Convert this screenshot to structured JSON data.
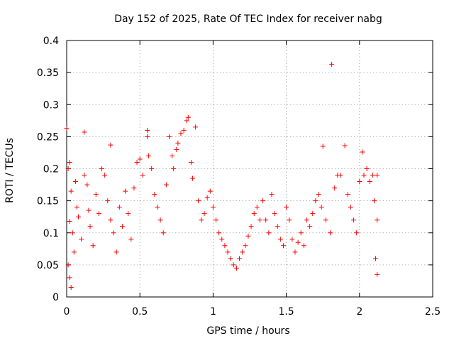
{
  "chart_data": {
    "type": "scatter",
    "title": "Day 152 of 2025, Rate Of TEC Index for receiver nabg",
    "xlabel": "GPS time / hours",
    "ylabel": "ROTI / TECUs",
    "xlim": [
      0,
      2.5
    ],
    "ylim": [
      0,
      0.4
    ],
    "xticks": [
      "0",
      "0.5",
      "1",
      "1.5",
      "2",
      "2.5"
    ],
    "yticks": [
      "0",
      "0.05",
      "0.1",
      "0.15",
      "0.2",
      "0.25",
      "0.3",
      "0.35",
      "0.4"
    ],
    "grid": true,
    "marker": "plus",
    "color": "#ff0000",
    "series": [
      {
        "points": [
          [
            0.0,
            0.263
          ],
          [
            0.01,
            0.2
          ],
          [
            0.02,
            0.21
          ],
          [
            0.03,
            0.165
          ],
          [
            0.02,
            0.118
          ],
          [
            0.04,
            0.1
          ],
          [
            0.05,
            0.07
          ],
          [
            0.01,
            0.05
          ],
          [
            0.02,
            0.03
          ],
          [
            0.03,
            0.015
          ],
          [
            0.06,
            0.18
          ],
          [
            0.07,
            0.14
          ],
          [
            0.08,
            0.125
          ],
          [
            0.1,
            0.09
          ],
          [
            0.12,
            0.257
          ],
          [
            0.12,
            0.19
          ],
          [
            0.14,
            0.175
          ],
          [
            0.15,
            0.135
          ],
          [
            0.16,
            0.11
          ],
          [
            0.18,
            0.08
          ],
          [
            0.2,
            0.16
          ],
          [
            0.22,
            0.13
          ],
          [
            0.24,
            0.2
          ],
          [
            0.26,
            0.19
          ],
          [
            0.28,
            0.15
          ],
          [
            0.3,
            0.237
          ],
          [
            0.3,
            0.12
          ],
          [
            0.32,
            0.1
          ],
          [
            0.34,
            0.07
          ],
          [
            0.36,
            0.14
          ],
          [
            0.38,
            0.11
          ],
          [
            0.4,
            0.165
          ],
          [
            0.42,
            0.13
          ],
          [
            0.44,
            0.09
          ],
          [
            0.46,
            0.17
          ],
          [
            0.48,
            0.21
          ],
          [
            0.5,
            0.215
          ],
          [
            0.52,
            0.19
          ],
          [
            0.55,
            0.26
          ],
          [
            0.55,
            0.25
          ],
          [
            0.56,
            0.22
          ],
          [
            0.58,
            0.2
          ],
          [
            0.6,
            0.16
          ],
          [
            0.62,
            0.14
          ],
          [
            0.64,
            0.12
          ],
          [
            0.66,
            0.1
          ],
          [
            0.68,
            0.175
          ],
          [
            0.7,
            0.25
          ],
          [
            0.72,
            0.22
          ],
          [
            0.73,
            0.2
          ],
          [
            0.75,
            0.23
          ],
          [
            0.76,
            0.24
          ],
          [
            0.78,
            0.255
          ],
          [
            0.8,
            0.26
          ],
          [
            0.82,
            0.275
          ],
          [
            0.83,
            0.28
          ],
          [
            0.85,
            0.21
          ],
          [
            0.86,
            0.185
          ],
          [
            0.88,
            0.265
          ],
          [
            0.9,
            0.15
          ],
          [
            0.92,
            0.12
          ],
          [
            0.94,
            0.13
          ],
          [
            0.96,
            0.155
          ],
          [
            0.98,
            0.165
          ],
          [
            1.0,
            0.14
          ],
          [
            1.02,
            0.12
          ],
          [
            1.04,
            0.1
          ],
          [
            1.06,
            0.09
          ],
          [
            1.08,
            0.08
          ],
          [
            1.1,
            0.07
          ],
          [
            1.12,
            0.06
          ],
          [
            1.14,
            0.05
          ],
          [
            1.16,
            0.045
          ],
          [
            1.18,
            0.06
          ],
          [
            1.2,
            0.07
          ],
          [
            1.22,
            0.08
          ],
          [
            1.24,
            0.095
          ],
          [
            1.26,
            0.11
          ],
          [
            1.28,
            0.13
          ],
          [
            1.3,
            0.14
          ],
          [
            1.32,
            0.12
          ],
          [
            1.34,
            0.15
          ],
          [
            1.36,
            0.12
          ],
          [
            1.38,
            0.1
          ],
          [
            1.4,
            0.16
          ],
          [
            1.42,
            0.13
          ],
          [
            1.44,
            0.11
          ],
          [
            1.46,
            0.09
          ],
          [
            1.48,
            0.08
          ],
          [
            1.5,
            0.14
          ],
          [
            1.52,
            0.12
          ],
          [
            1.54,
            0.09
          ],
          [
            1.56,
            0.07
          ],
          [
            1.58,
            0.085
          ],
          [
            1.6,
            0.1
          ],
          [
            1.62,
            0.08
          ],
          [
            1.64,
            0.12
          ],
          [
            1.66,
            0.11
          ],
          [
            1.68,
            0.13
          ],
          [
            1.7,
            0.15
          ],
          [
            1.72,
            0.16
          ],
          [
            1.74,
            0.14
          ],
          [
            1.75,
            0.235
          ],
          [
            1.77,
            0.12
          ],
          [
            1.8,
            0.1
          ],
          [
            1.81,
            0.363
          ],
          [
            1.83,
            0.17
          ],
          [
            1.85,
            0.19
          ],
          [
            1.87,
            0.19
          ],
          [
            1.9,
            0.236
          ],
          [
            1.92,
            0.16
          ],
          [
            1.94,
            0.14
          ],
          [
            1.96,
            0.12
          ],
          [
            1.98,
            0.1
          ],
          [
            2.0,
            0.18
          ],
          [
            2.02,
            0.226
          ],
          [
            2.03,
            0.19
          ],
          [
            2.05,
            0.2
          ],
          [
            2.07,
            0.18
          ],
          [
            2.09,
            0.19
          ],
          [
            2.1,
            0.15
          ],
          [
            2.12,
            0.12
          ],
          [
            2.12,
            0.19
          ],
          [
            2.11,
            0.06
          ],
          [
            2.12,
            0.035
          ]
        ]
      }
    ]
  }
}
